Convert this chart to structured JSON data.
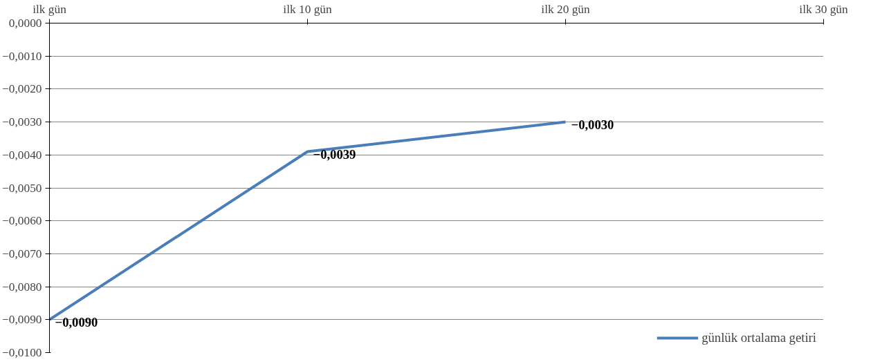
{
  "chart_data": {
    "type": "line",
    "categories": [
      "ilk gün",
      "ilk 10 gün",
      "ilk 20 gün",
      "ilk 30 gün"
    ],
    "series": [
      {
        "name": "günlük ortalama getiri",
        "color": "#4a7ebb",
        "values": [
          -0.009,
          -0.0039,
          -0.003,
          null
        ],
        "value_labels": [
          "−0,0090",
          "−0,0039",
          "−0,0030",
          null
        ]
      }
    ],
    "ylim": [
      -0.01,
      0
    ],
    "yticks": [
      {
        "value": 0,
        "label": "0,0000"
      },
      {
        "value": -0.001,
        "label": "−0,0010"
      },
      {
        "value": -0.002,
        "label": "−0,0020"
      },
      {
        "value": -0.003,
        "label": "−0,0030"
      },
      {
        "value": -0.004,
        "label": "−0,0040"
      },
      {
        "value": -0.005,
        "label": "−0,0050"
      },
      {
        "value": -0.006,
        "label": "−0,0060"
      },
      {
        "value": -0.007,
        "label": "−0,0070"
      },
      {
        "value": -0.008,
        "label": "−0,0080"
      },
      {
        "value": -0.009,
        "label": "−0,0090"
      },
      {
        "value": -0.01,
        "label": "−0,0100"
      }
    ],
    "grid": "y",
    "legend": "bottom right",
    "marker": "none",
    "line_style": "solid"
  }
}
